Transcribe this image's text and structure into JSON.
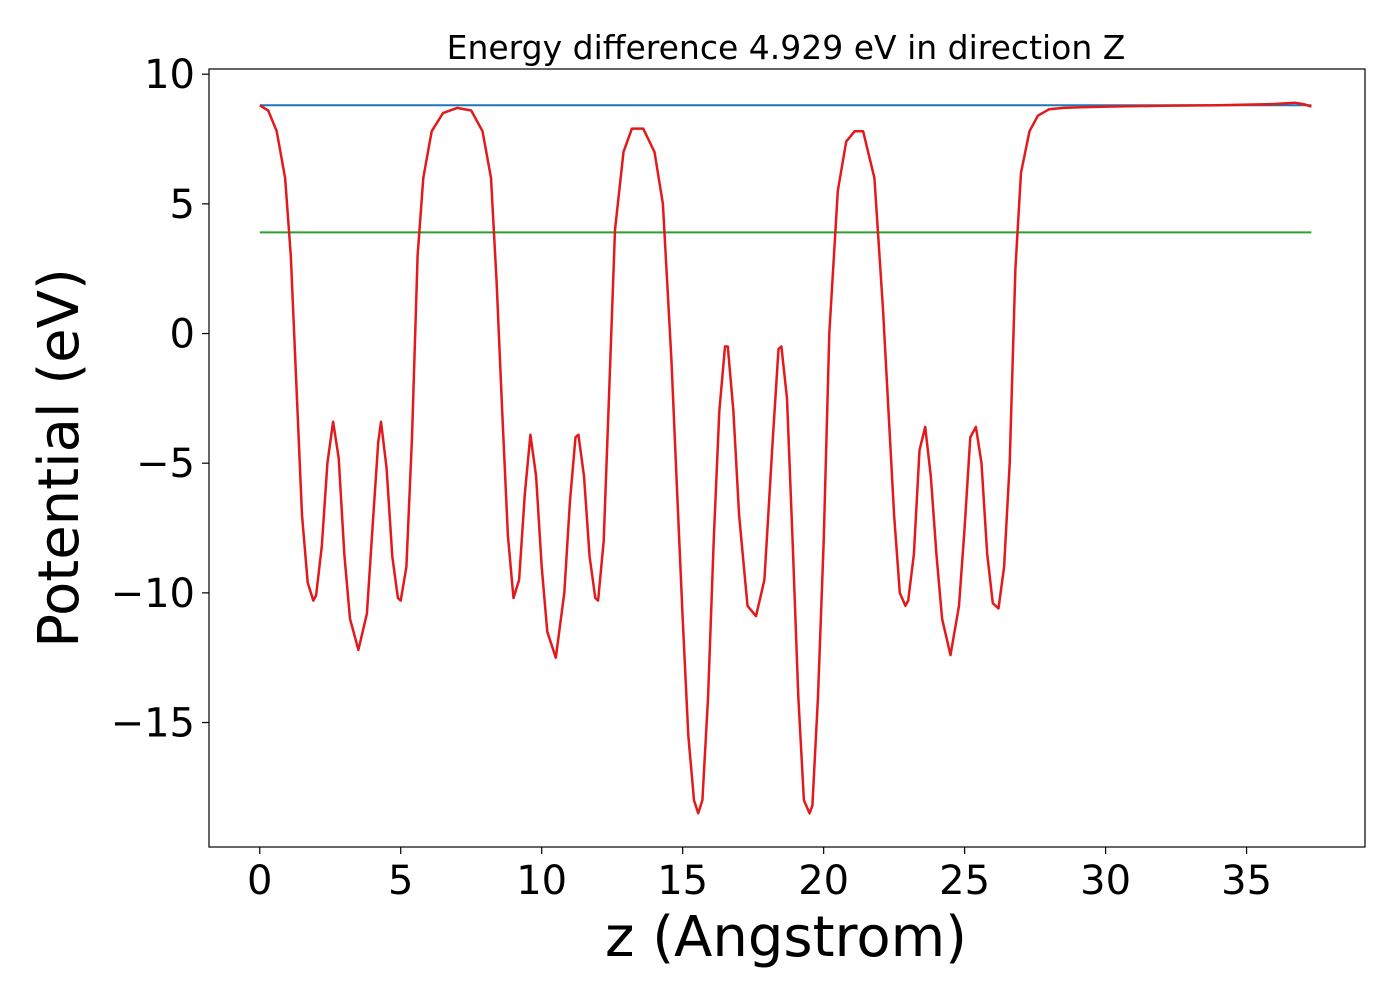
{
  "chart_data": {
    "type": "line",
    "title": "Energy difference 4.929 eV in direction Z",
    "xlabel": "z (Angstrom)",
    "ylabel": "Potential (eV)",
    "xlim": [
      -1.8,
      39.2
    ],
    "ylim": [
      -19.8,
      10.2
    ],
    "xticks": [
      0,
      5,
      10,
      15,
      20,
      25,
      30,
      35
    ],
    "yticks": [
      10,
      5,
      0,
      -5,
      -10,
      -15
    ],
    "xtick_labels": [
      "0",
      "5",
      "10",
      "15",
      "20",
      "25",
      "30",
      "35"
    ],
    "ytick_labels": [
      "10",
      "5",
      "0",
      "−5",
      "−10",
      "−15"
    ],
    "grid": false,
    "series": [
      {
        "color": "#1f77b4",
        "x": [
          0,
          37.3
        ],
        "y": [
          8.8,
          8.8
        ]
      },
      {
        "color": "#2ca02c",
        "x": [
          0,
          37.3
        ],
        "y": [
          3.9,
          3.9
        ]
      },
      {
        "color": "#e31a1c",
        "x": [
          0,
          0.3,
          0.6,
          0.9,
          1.1,
          1.3,
          1.5,
          1.7,
          1.9,
          2.0,
          2.2,
          2.4,
          2.6,
          2.8,
          3.0,
          3.2,
          3.5,
          3.8,
          4.0,
          4.2,
          4.3,
          4.5,
          4.7,
          4.9,
          5.0,
          5.2,
          5.4,
          5.6,
          5.8,
          6.1,
          6.5,
          7.0,
          7.5,
          7.9,
          8.2,
          8.4,
          8.6,
          8.8,
          9.0,
          9.2,
          9.4,
          9.6,
          9.8,
          10.0,
          10.2,
          10.5,
          10.8,
          11.0,
          11.2,
          11.3,
          11.5,
          11.7,
          11.9,
          12.0,
          12.2,
          12.4,
          12.6,
          12.9,
          13.2,
          13.6,
          14.0,
          14.3,
          14.6,
          14.8,
          15.0,
          15.2,
          15.4,
          15.55,
          15.7,
          15.9,
          16.1,
          16.3,
          16.5,
          16.6,
          16.8,
          17.0,
          17.3,
          17.6,
          17.9,
          18.2,
          18.4,
          18.5,
          18.7,
          18.9,
          19.1,
          19.3,
          19.5,
          19.6,
          19.8,
          20.0,
          20.2,
          20.5,
          20.8,
          21.1,
          21.4,
          21.8,
          22.1,
          22.3,
          22.5,
          22.7,
          22.9,
          23.0,
          23.2,
          23.4,
          23.6,
          23.8,
          24.0,
          24.2,
          24.5,
          24.8,
          25.0,
          25.2,
          25.4,
          25.6,
          25.8,
          26.0,
          26.2,
          26.4,
          26.6,
          26.8,
          27.0,
          27.3,
          27.6,
          28.0,
          28.5,
          29.0,
          30.0,
          32.0,
          34.0,
          36.0,
          36.7,
          37.0,
          37.3
        ],
        "y": [
          8.8,
          8.6,
          7.8,
          6.0,
          3.0,
          -2.0,
          -7.0,
          -9.6,
          -10.3,
          -10.1,
          -8.2,
          -5.0,
          -3.4,
          -4.8,
          -8.5,
          -11.0,
          -12.2,
          -10.8,
          -7.5,
          -4.2,
          -3.4,
          -5.2,
          -8.6,
          -10.2,
          -10.3,
          -9.0,
          -4.0,
          3.0,
          6.0,
          7.8,
          8.5,
          8.7,
          8.6,
          7.8,
          6.0,
          2.0,
          -3.0,
          -7.8,
          -10.2,
          -9.5,
          -6.2,
          -3.9,
          -5.5,
          -9.0,
          -11.5,
          -12.5,
          -10.0,
          -6.5,
          -4.0,
          -3.9,
          -5.5,
          -8.6,
          -10.2,
          -10.3,
          -8.0,
          -2.0,
          4.0,
          7.0,
          7.9,
          7.9,
          7.0,
          5.0,
          -1.0,
          -6.0,
          -11.0,
          -15.5,
          -18.0,
          -18.5,
          -18.0,
          -14.0,
          -8.0,
          -3.0,
          -0.5,
          -0.5,
          -3.0,
          -7.0,
          -10.5,
          -10.9,
          -9.5,
          -4.0,
          -0.6,
          -0.5,
          -2.5,
          -8.0,
          -14.0,
          -18.0,
          -18.5,
          -18.2,
          -14.0,
          -8.0,
          0.0,
          5.5,
          7.4,
          7.8,
          7.8,
          6.0,
          1.0,
          -3.0,
          -7.0,
          -10.0,
          -10.5,
          -10.3,
          -8.5,
          -4.5,
          -3.6,
          -5.5,
          -8.5,
          -11.0,
          -12.4,
          -10.5,
          -7.5,
          -4.0,
          -3.6,
          -5.0,
          -8.5,
          -10.4,
          -10.6,
          -9.0,
          -5.0,
          2.5,
          6.2,
          7.8,
          8.4,
          8.65,
          8.7,
          8.72,
          8.75,
          8.78,
          8.8,
          8.85,
          8.9,
          8.85,
          8.75
        ]
      }
    ]
  }
}
